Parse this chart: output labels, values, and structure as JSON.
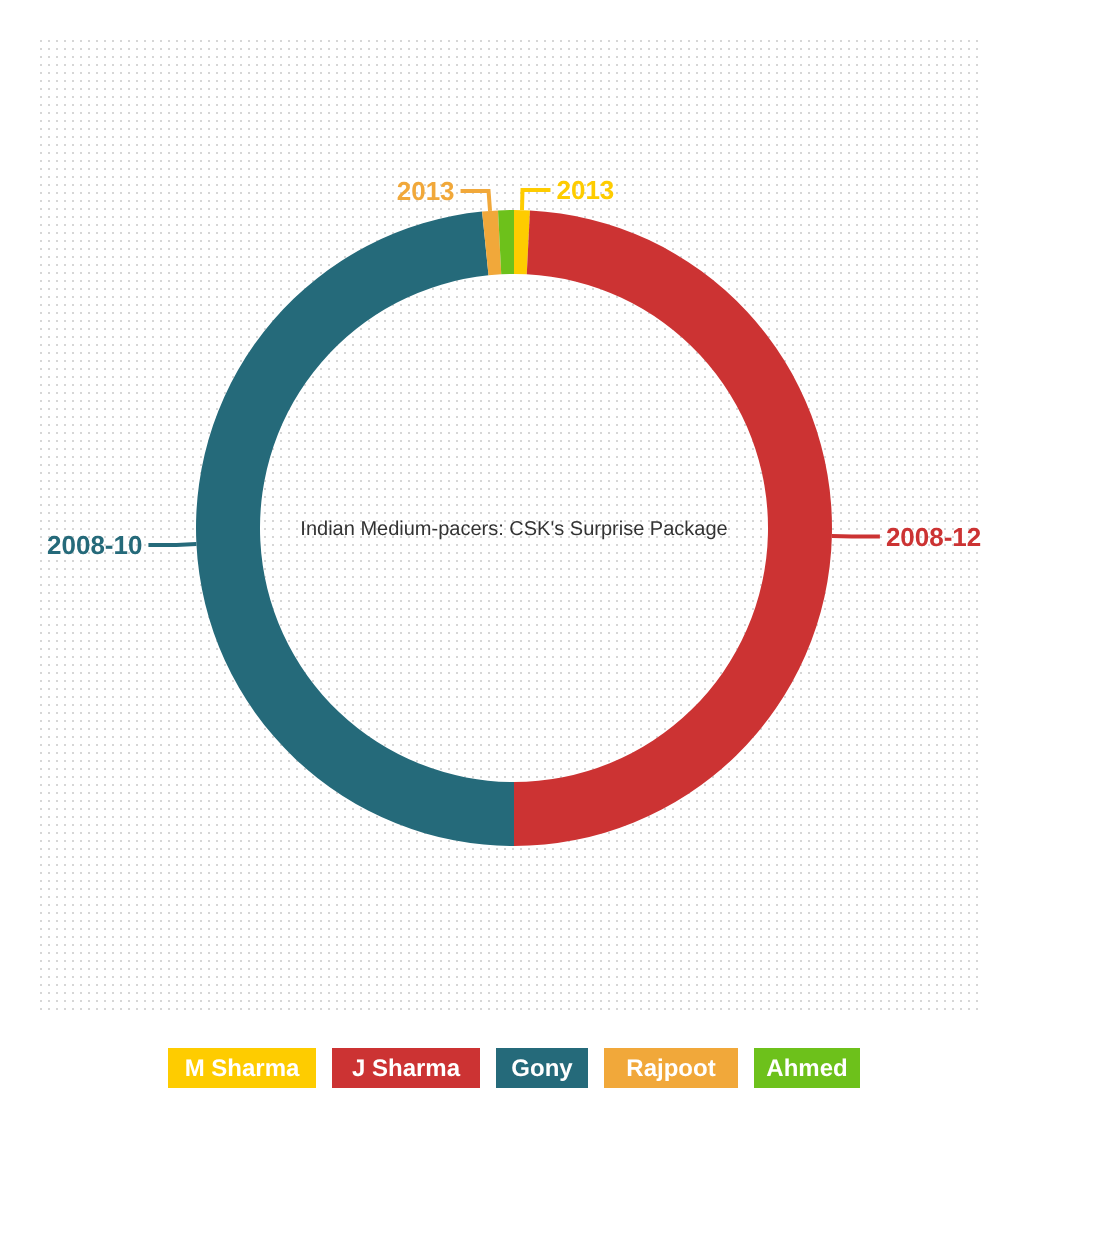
{
  "chart_data": {
    "type": "donut",
    "title": "Indian Medium-pacers: CSK's Surprise Package",
    "categories": [
      "M Sharma",
      "J Sharma",
      "Gony",
      "Rajpoot",
      "Ahmed"
    ],
    "values": [
      0.8,
      49.2,
      48.4,
      0.8,
      0.8
    ],
    "colors": [
      "#fecc00",
      "#cc3333",
      "#256a7a",
      "#f1a83a",
      "#6dc11b"
    ],
    "annotations": [
      {
        "text": "2013",
        "x": "M Sharma"
      },
      {
        "text": "2008-12",
        "x": "J Sharma"
      },
      {
        "text": "2008-10",
        "x": "Gony"
      },
      {
        "text": "2013",
        "x": "Rajpoot"
      }
    ],
    "legend": "bottom"
  }
}
